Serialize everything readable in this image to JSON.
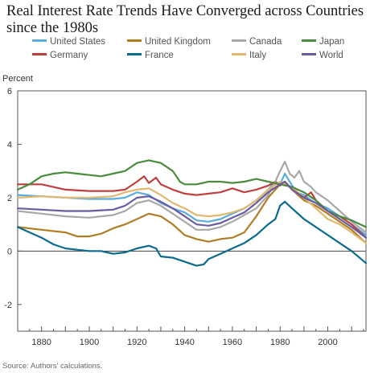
{
  "chart_data": {
    "type": "line",
    "title": "Real Interest Rate Trends Have Converged across Countries since the 1980s",
    "ylabel": "Percent",
    "xlabel": "",
    "source": "Source: Authors' calculations.",
    "xlim": [
      1870,
      2016
    ],
    "ylim": [
      -3,
      6
    ],
    "xticks": [
      1880,
      1900,
      1920,
      1940,
      1960,
      1980,
      2000
    ],
    "yticks": [
      -2,
      0,
      2,
      4,
      6
    ],
    "grid": false,
    "zero_line": true,
    "legend_position": "top",
    "series": [
      {
        "name": "United States",
        "color": "#5AADDF",
        "x": [
          1870,
          1880,
          1890,
          1900,
          1910,
          1915,
          1920,
          1925,
          1930,
          1935,
          1940,
          1945,
          1950,
          1955,
          1960,
          1965,
          1970,
          1975,
          1978,
          1980,
          1982,
          1984,
          1987,
          1990,
          1993,
          1995,
          2000,
          2005,
          2010,
          2016
        ],
        "y": [
          2.1,
          2.05,
          2.0,
          1.95,
          1.95,
          2.0,
          2.2,
          2.1,
          1.8,
          1.6,
          1.45,
          1.15,
          1.1,
          1.2,
          1.4,
          1.6,
          1.9,
          2.3,
          2.6,
          2.5,
          2.9,
          2.6,
          2.2,
          2.1,
          1.9,
          1.8,
          1.6,
          1.3,
          1.0,
          0.6
        ]
      },
      {
        "name": "Germany",
        "color": "#C0403E",
        "x": [
          1870,
          1880,
          1890,
          1900,
          1910,
          1915,
          1920,
          1923,
          1925,
          1928,
          1930,
          1935,
          1940,
          1945,
          1950,
          1955,
          1960,
          1965,
          1970,
          1975,
          1978,
          1980,
          1982,
          1985,
          1988,
          1990,
          1993,
          1995,
          2000,
          2005,
          2010,
          2016
        ],
        "y": [
          2.5,
          2.5,
          2.3,
          2.25,
          2.25,
          2.3,
          2.6,
          2.8,
          2.55,
          2.75,
          2.5,
          2.3,
          2.15,
          2.1,
          2.15,
          2.2,
          2.35,
          2.2,
          2.3,
          2.45,
          2.6,
          2.45,
          2.6,
          2.3,
          2.1,
          2.0,
          2.2,
          1.9,
          1.5,
          1.3,
          1.0,
          0.5
        ]
      },
      {
        "name": "United Kingdom",
        "color": "#B07D25",
        "x": [
          1870,
          1880,
          1890,
          1895,
          1900,
          1905,
          1910,
          1915,
          1920,
          1925,
          1930,
          1935,
          1940,
          1945,
          1950,
          1955,
          1960,
          1965,
          1970,
          1975,
          1980,
          1982,
          1985,
          1990,
          1995,
          2000,
          2005,
          2010,
          2016
        ],
        "y": [
          0.9,
          0.8,
          0.7,
          0.55,
          0.55,
          0.65,
          0.85,
          1.0,
          1.2,
          1.4,
          1.3,
          1.0,
          0.6,
          0.45,
          0.35,
          0.45,
          0.5,
          0.7,
          1.3,
          2.0,
          2.5,
          2.6,
          2.3,
          1.9,
          1.7,
          1.4,
          1.1,
          0.8,
          0.3
        ]
      },
      {
        "name": "France",
        "color": "#0A6B8E",
        "x": [
          1870,
          1875,
          1880,
          1885,
          1890,
          1895,
          1900,
          1905,
          1910,
          1915,
          1920,
          1925,
          1928,
          1930,
          1935,
          1940,
          1945,
          1948,
          1950,
          1955,
          1960,
          1965,
          1970,
          1975,
          1978,
          1980,
          1982,
          1985,
          1990,
          1995,
          2000,
          2005,
          2010,
          2016
        ],
        "y": [
          0.9,
          0.7,
          0.5,
          0.25,
          0.1,
          0.05,
          0.0,
          0.0,
          -0.1,
          -0.05,
          0.1,
          0.2,
          0.1,
          -0.2,
          -0.25,
          -0.4,
          -0.55,
          -0.5,
          -0.3,
          -0.1,
          0.1,
          0.3,
          0.6,
          1.0,
          1.2,
          1.7,
          1.85,
          1.6,
          1.2,
          0.9,
          0.6,
          0.3,
          0.0,
          -0.45
        ]
      },
      {
        "name": "Canada",
        "color": "#A8A8A8",
        "x": [
          1870,
          1880,
          1890,
          1900,
          1910,
          1915,
          1920,
          1925,
          1930,
          1935,
          1940,
          1945,
          1950,
          1955,
          1960,
          1965,
          1970,
          1975,
          1978,
          1980,
          1982,
          1984,
          1986,
          1988,
          1990,
          1993,
          1995,
          2000,
          2005,
          2010,
          2016
        ],
        "y": [
          1.5,
          1.4,
          1.3,
          1.25,
          1.35,
          1.5,
          1.8,
          1.9,
          1.7,
          1.4,
          1.1,
          0.8,
          0.8,
          0.9,
          1.1,
          1.35,
          1.6,
          2.1,
          2.6,
          3.0,
          3.35,
          2.9,
          2.75,
          3.0,
          2.6,
          2.4,
          2.2,
          1.9,
          1.5,
          1.1,
          0.7
        ]
      },
      {
        "name": "Italy",
        "color": "#E2B76F",
        "x": [
          1870,
          1880,
          1890,
          1900,
          1910,
          1915,
          1920,
          1925,
          1930,
          1935,
          1940,
          1945,
          1950,
          1955,
          1960,
          1965,
          1970,
          1975,
          1980,
          1985,
          1990,
          1995,
          2000,
          2005,
          2010,
          2016
        ],
        "y": [
          2.0,
          2.05,
          2.0,
          2.0,
          2.05,
          2.2,
          2.3,
          2.35,
          2.1,
          1.8,
          1.6,
          1.35,
          1.3,
          1.35,
          1.45,
          1.6,
          1.9,
          2.3,
          2.6,
          2.4,
          2.0,
          1.6,
          1.2,
          1.0,
          0.7,
          0.3
        ]
      },
      {
        "name": "Japan",
        "color": "#4A8B3D",
        "x": [
          1870,
          1875,
          1880,
          1885,
          1890,
          1895,
          1900,
          1905,
          1910,
          1915,
          1920,
          1925,
          1930,
          1935,
          1938,
          1940,
          1945,
          1950,
          1955,
          1960,
          1965,
          1970,
          1975,
          1980,
          1985,
          1990,
          1995,
          2000,
          2005,
          2010,
          2016
        ],
        "y": [
          2.3,
          2.5,
          2.8,
          2.9,
          2.95,
          2.9,
          2.85,
          2.8,
          2.9,
          3.0,
          3.3,
          3.4,
          3.3,
          3.0,
          2.6,
          2.5,
          2.5,
          2.6,
          2.6,
          2.55,
          2.6,
          2.7,
          2.6,
          2.5,
          2.4,
          2.2,
          1.9,
          1.5,
          1.3,
          1.15,
          0.9
        ]
      },
      {
        "name": "World",
        "color": "#6A5BA3",
        "x": [
          1870,
          1880,
          1890,
          1900,
          1910,
          1915,
          1920,
          1925,
          1930,
          1935,
          1940,
          1945,
          1950,
          1955,
          1960,
          1965,
          1970,
          1975,
          1980,
          1982,
          1985,
          1990,
          1995,
          2000,
          2005,
          2010,
          2016
        ],
        "y": [
          1.6,
          1.55,
          1.5,
          1.5,
          1.55,
          1.7,
          2.0,
          2.05,
          1.85,
          1.6,
          1.3,
          1.0,
          0.95,
          1.05,
          1.25,
          1.45,
          1.8,
          2.2,
          2.5,
          2.6,
          2.3,
          2.0,
          1.8,
          1.5,
          1.2,
          0.9,
          0.5
        ]
      }
    ]
  }
}
